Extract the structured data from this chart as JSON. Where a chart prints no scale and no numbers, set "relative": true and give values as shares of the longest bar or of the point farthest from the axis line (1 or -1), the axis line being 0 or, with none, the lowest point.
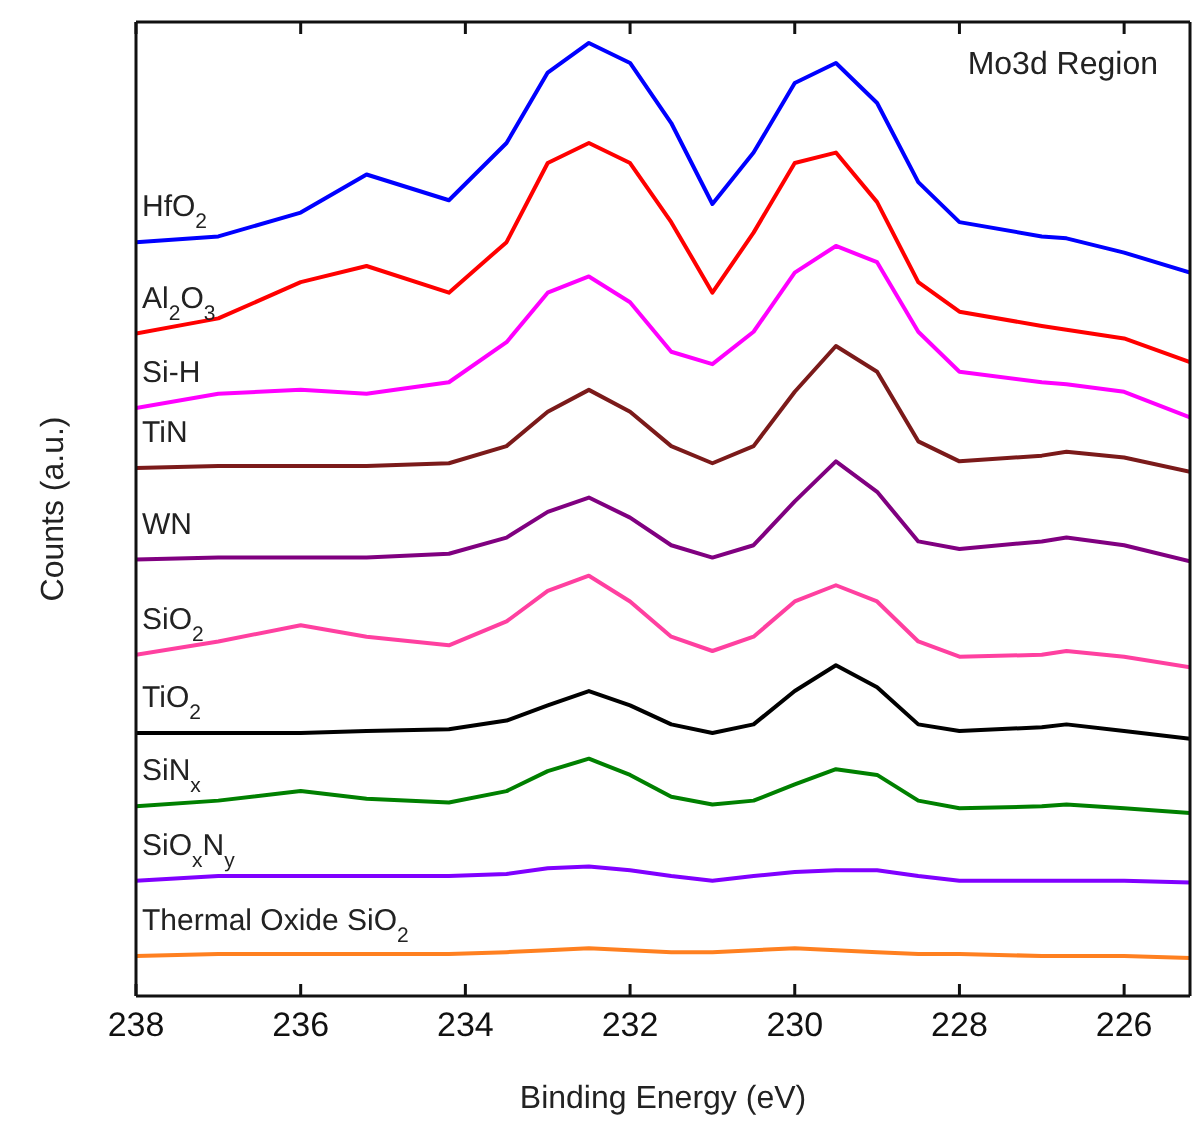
{
  "chart_data": {
    "type": "line",
    "relative": true,
    "xlabel": "Binding Energy (eV)",
    "ylabel": "Counts (a.u.)",
    "annotations": [
      "Mo3d Region"
    ],
    "xlim": [
      238,
      225.2
    ],
    "xticks": [
      238,
      236,
      234,
      232,
      230,
      228,
      226
    ],
    "marker": "none",
    "line_style": "solid",
    "x": [
      238,
      237,
      236,
      235.2,
      234.2,
      233.5,
      233,
      232.5,
      232,
      231.5,
      231,
      230.5,
      230,
      229.5,
      229,
      228.5,
      228,
      227,
      226.7,
      226,
      225.2
    ],
    "series": [
      {
        "name": "HfO$_{2}$",
        "color": "#0000ff",
        "values": [
          0.791,
          0.797,
          0.822,
          0.862,
          0.835,
          0.895,
          0.969,
          1,
          0.979,
          0.916,
          0.831,
          0.885,
          0.958,
          0.979,
          0.937,
          0.854,
          0.812,
          0.797,
          0.795,
          0.78,
          0.759
        ]
      },
      {
        "name": "Al$_{2}$O$_{3}$",
        "color": "#ff0000",
        "values": [
          0.695,
          0.711,
          0.749,
          0.766,
          0.738,
          0.791,
          0.874,
          0.895,
          0.874,
          0.812,
          0.738,
          0.801,
          0.874,
          0.885,
          0.833,
          0.749,
          0.718,
          0.703,
          0.699,
          0.69,
          0.665
        ]
      },
      {
        "name": "Si-H",
        "color": "#ff00ff",
        "values": [
          0.617,
          0.632,
          0.636,
          0.632,
          0.644,
          0.686,
          0.738,
          0.755,
          0.728,
          0.676,
          0.663,
          0.697,
          0.759,
          0.787,
          0.77,
          0.697,
          0.655,
          0.644,
          0.642,
          0.634,
          0.607
        ]
      },
      {
        "name": "TiN",
        "color": "#7b1a1a",
        "values": [
          0.554,
          0.556,
          0.556,
          0.556,
          0.559,
          0.577,
          0.613,
          0.636,
          0.613,
          0.577,
          0.559,
          0.577,
          0.634,
          0.682,
          0.655,
          0.582,
          0.561,
          0.567,
          0.571,
          0.565,
          0.55
        ]
      },
      {
        "name": "WN",
        "color": "#800080",
        "values": [
          0.458,
          0.46,
          0.46,
          0.46,
          0.464,
          0.481,
          0.508,
          0.523,
          0.502,
          0.473,
          0.46,
          0.473,
          0.519,
          0.561,
          0.529,
          0.477,
          0.469,
          0.477,
          0.481,
          0.473,
          0.456
        ]
      },
      {
        "name": "SiO$_{2}$",
        "color": "#ff40a0",
        "values": [
          0.358,
          0.372,
          0.389,
          0.377,
          0.368,
          0.393,
          0.425,
          0.441,
          0.414,
          0.377,
          0.362,
          0.377,
          0.414,
          0.431,
          0.414,
          0.372,
          0.356,
          0.358,
          0.362,
          0.356,
          0.345
        ]
      },
      {
        "name": "TiO$_{2}$",
        "color": "#000000",
        "values": [
          0.276,
          0.276,
          0.276,
          0.278,
          0.28,
          0.289,
          0.305,
          0.32,
          0.305,
          0.285,
          0.276,
          0.285,
          0.32,
          0.347,
          0.324,
          0.285,
          0.278,
          0.282,
          0.285,
          0.278,
          0.27
        ]
      },
      {
        "name": "SiN$_{x}$",
        "color": "#008000",
        "values": [
          0.199,
          0.205,
          0.215,
          0.207,
          0.203,
          0.215,
          0.236,
          0.249,
          0.232,
          0.209,
          0.201,
          0.205,
          0.222,
          0.238,
          0.232,
          0.205,
          0.197,
          0.199,
          0.201,
          0.197,
          0.192
        ]
      },
      {
        "name": "SiO$_{x}$N$_{y}$",
        "color": "#8000ff",
        "values": [
          0.121,
          0.126,
          0.126,
          0.126,
          0.126,
          0.128,
          0.134,
          0.136,
          0.132,
          0.126,
          0.121,
          0.126,
          0.13,
          0.132,
          0.132,
          0.126,
          0.121,
          0.121,
          0.121,
          0.121,
          0.119
        ]
      },
      {
        "name": "Thermal Oxide SiO$_{2}$",
        "color": "#ff8020",
        "values": [
          0.042,
          0.044,
          0.044,
          0.044,
          0.044,
          0.046,
          0.048,
          0.05,
          0.048,
          0.046,
          0.046,
          0.048,
          0.05,
          0.048,
          0.046,
          0.044,
          0.044,
          0.042,
          0.042,
          0.042,
          0.04
        ]
      }
    ]
  }
}
